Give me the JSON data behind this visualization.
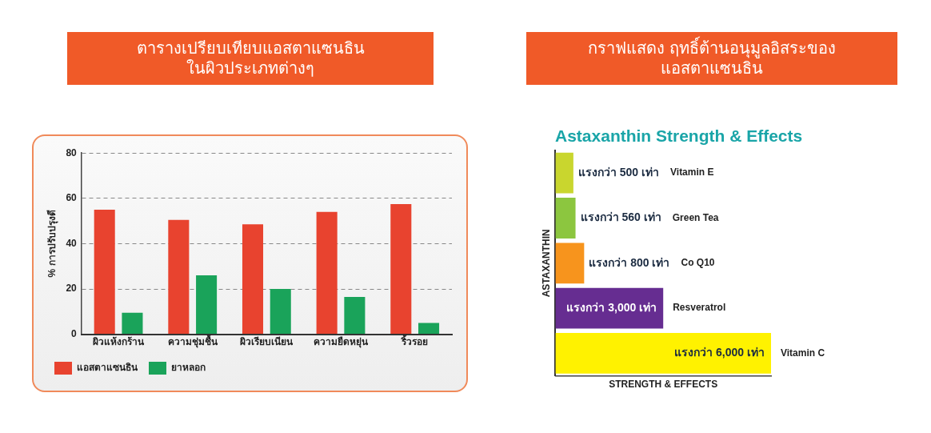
{
  "chart_data": [
    {
      "type": "bar",
      "title": "ตารางเปรียบเทียบแอสตาแซนธิน\nในผิวประเภทต่างๆ",
      "ylabel": "% การปรับปรุงดี",
      "categories": [
        "ผิวแห้งกร้าน",
        "ความชุ่มชื้น",
        "ผิวเรียบเนียน",
        "ความยืดหยุ่น",
        "ริ้วรอย"
      ],
      "series": [
        {
          "name": "แอสตาแซนธิน",
          "color": "#e8432f",
          "values": [
            55,
            50.5,
            48.5,
            54,
            57.5
          ]
        },
        {
          "name": "ยาหลอก",
          "color": "#1aa35a",
          "values": [
            9.5,
            26,
            20,
            16.5,
            5
          ]
        }
      ],
      "ylim": [
        0,
        80
      ],
      "yticks": [
        0,
        20,
        40,
        60,
        80
      ],
      "grid": "y",
      "legend": "bottom left"
    },
    {
      "type": "bar",
      "title": "กราฟแสดง ฤทธิ์ต้านอนุมูลอิสระของ\nแอสตาแซนธิน",
      "subtitle": "Astaxanthin Strength & Effects",
      "xlabel": "STRENGTH & EFFECTS",
      "ylabel": "ASTAXANTHIN",
      "orientation": "horizontal",
      "categories": [
        "Vitamin E",
        "Green Tea",
        "Co Q10",
        "Resveratrol",
        "Vitamin C"
      ],
      "values": [
        500,
        560,
        800,
        3000,
        6000
      ],
      "colors": [
        "#c9d62e",
        "#8cc63f",
        "#f7941d",
        "#662d91",
        "#fff200"
      ],
      "value_labels": [
        "แรงกว่า 500 เท่า",
        "แรงกว่า 560 เท่า",
        "แรงกว่า 800 เท่า",
        "แรงกว่า 3,000 เท่า",
        "แรงกว่า 6,000 เท่า"
      ],
      "tick_labels": false,
      "grid": false,
      "legend": false
    }
  ]
}
